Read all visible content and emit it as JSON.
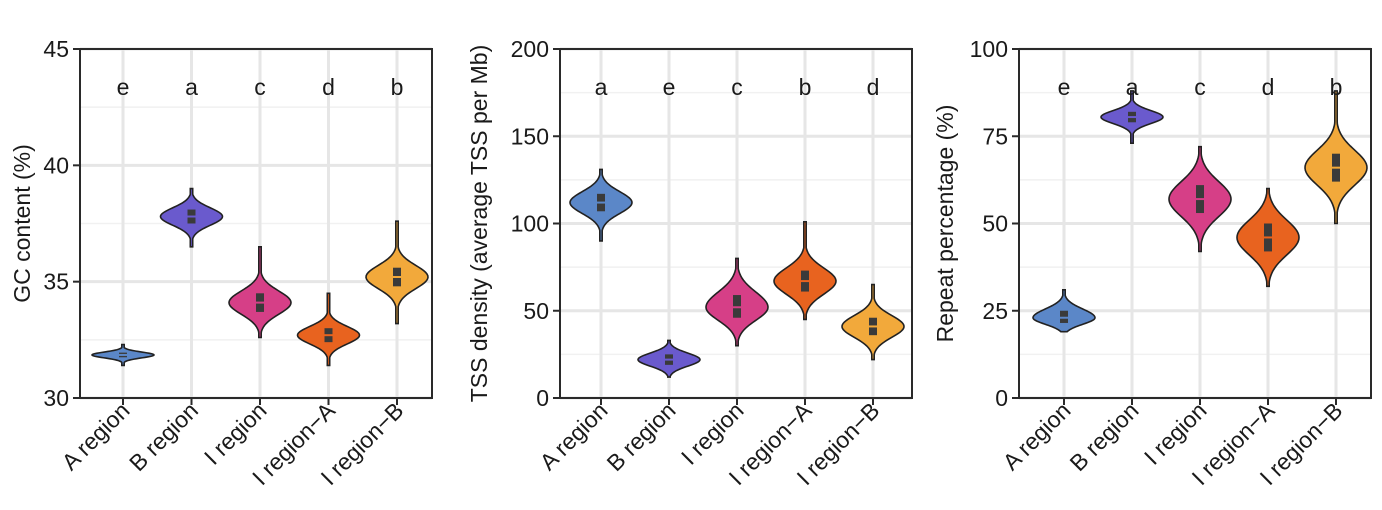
{
  "chart_data": [
    {
      "type": "violin",
      "ylabel": "GC content (%)",
      "ylim": [
        30,
        45
      ],
      "yticks": [
        30,
        35,
        40,
        45
      ],
      "grid": true,
      "categories": [
        "A region",
        "B region",
        "I region",
        "I region−A",
        "I region−B"
      ],
      "letters": [
        "e",
        "a",
        "c",
        "d",
        "b"
      ],
      "colors": [
        "#5b87c8",
        "#6a5acd",
        "#d63f87",
        "#e8631f",
        "#f2a93b"
      ],
      "violins": [
        {
          "min": 31.4,
          "max": 32.3,
          "median": 31.85,
          "q1": 31.75,
          "q3": 31.95
        },
        {
          "min": 36.5,
          "max": 39.0,
          "median": 37.8,
          "q1": 37.5,
          "q3": 38.1
        },
        {
          "min": 32.6,
          "max": 36.5,
          "median": 34.1,
          "q1": 33.7,
          "q3": 34.5
        },
        {
          "min": 31.4,
          "max": 34.5,
          "median": 32.7,
          "q1": 32.4,
          "q3": 33.0
        },
        {
          "min": 33.2,
          "max": 37.6,
          "median": 35.2,
          "q1": 34.8,
          "q3": 35.6
        }
      ]
    },
    {
      "type": "violin",
      "ylabel": "TSS density (average TSS per Mb)",
      "ylim": [
        0,
        200
      ],
      "yticks": [
        0,
        50,
        100,
        150,
        200
      ],
      "grid": true,
      "categories": [
        "A region",
        "B region",
        "I region",
        "I region−A",
        "I region−B"
      ],
      "letters": [
        "a",
        "e",
        "c",
        "b",
        "d"
      ],
      "colors": [
        "#5b87c8",
        "#6a5acd",
        "#d63f87",
        "#e8631f",
        "#f2a93b"
      ],
      "violins": [
        {
          "min": 90,
          "max": 131,
          "median": 112,
          "q1": 107,
          "q3": 117
        },
        {
          "min": 12,
          "max": 33,
          "median": 22,
          "q1": 19,
          "q3": 25
        },
        {
          "min": 30,
          "max": 80,
          "median": 52,
          "q1": 46,
          "q3": 59
        },
        {
          "min": 45,
          "max": 101,
          "median": 67,
          "q1": 61,
          "q3": 73
        },
        {
          "min": 22,
          "max": 65,
          "median": 41,
          "q1": 36,
          "q3": 46
        }
      ]
    },
    {
      "type": "violin",
      "ylabel": "Repeat percentage (%)",
      "ylim": [
        0,
        100
      ],
      "yticks": [
        0,
        25,
        50,
        75,
        100
      ],
      "grid": true,
      "categories": [
        "A region",
        "B region",
        "I region",
        "I region−A",
        "I region−B"
      ],
      "letters": [
        "e",
        "a",
        "c",
        "d",
        "b"
      ],
      "colors": [
        "#5b87c8",
        "#6a5acd",
        "#d63f87",
        "#e8631f",
        "#f2a93b"
      ],
      "violins": [
        {
          "min": 19,
          "max": 31,
          "median": 23,
          "q1": 21.5,
          "q3": 25
        },
        {
          "min": 73,
          "max": 88,
          "median": 80.5,
          "q1": 79,
          "q3": 82
        },
        {
          "min": 42,
          "max": 72,
          "median": 57,
          "q1": 53,
          "q3": 61
        },
        {
          "min": 32,
          "max": 60,
          "median": 46,
          "q1": 42,
          "q3": 50
        },
        {
          "min": 50,
          "max": 88,
          "median": 66,
          "q1": 62,
          "q3": 70
        }
      ]
    }
  ]
}
